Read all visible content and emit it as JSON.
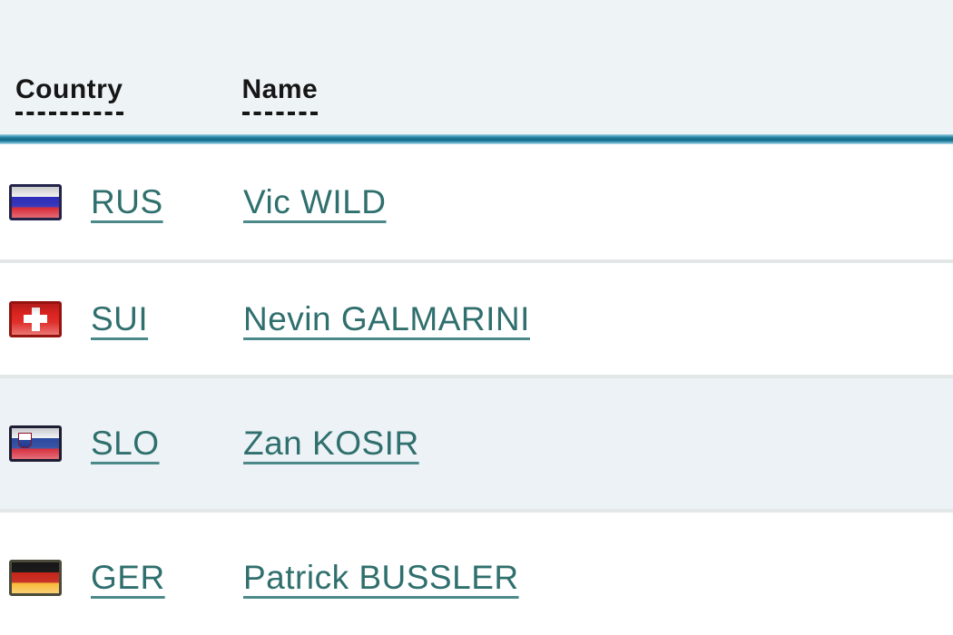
{
  "table": {
    "columns": [
      {
        "label": "Country"
      },
      {
        "label": "Name"
      }
    ],
    "rows": [
      {
        "flag": "russia-flag-icon",
        "code": "RUS",
        "name": "Vic WILD"
      },
      {
        "flag": "switzerland-flag-icon",
        "code": "SUI",
        "name": "Nevin GALMARINI"
      },
      {
        "flag": "slovenia-flag-icon",
        "code": "SLO",
        "name": "Zan KOSIR"
      },
      {
        "flag": "germany-flag-icon",
        "code": "GER",
        "name": "Patrick BUSSLER"
      }
    ]
  },
  "colors": {
    "page_background": "#eef4f6",
    "alt_row_background": "#ecf2f5",
    "accent_rule": "#15708f",
    "link": "#2f6f6d",
    "divider": "#e3e7e7",
    "header_text": "#161616"
  }
}
